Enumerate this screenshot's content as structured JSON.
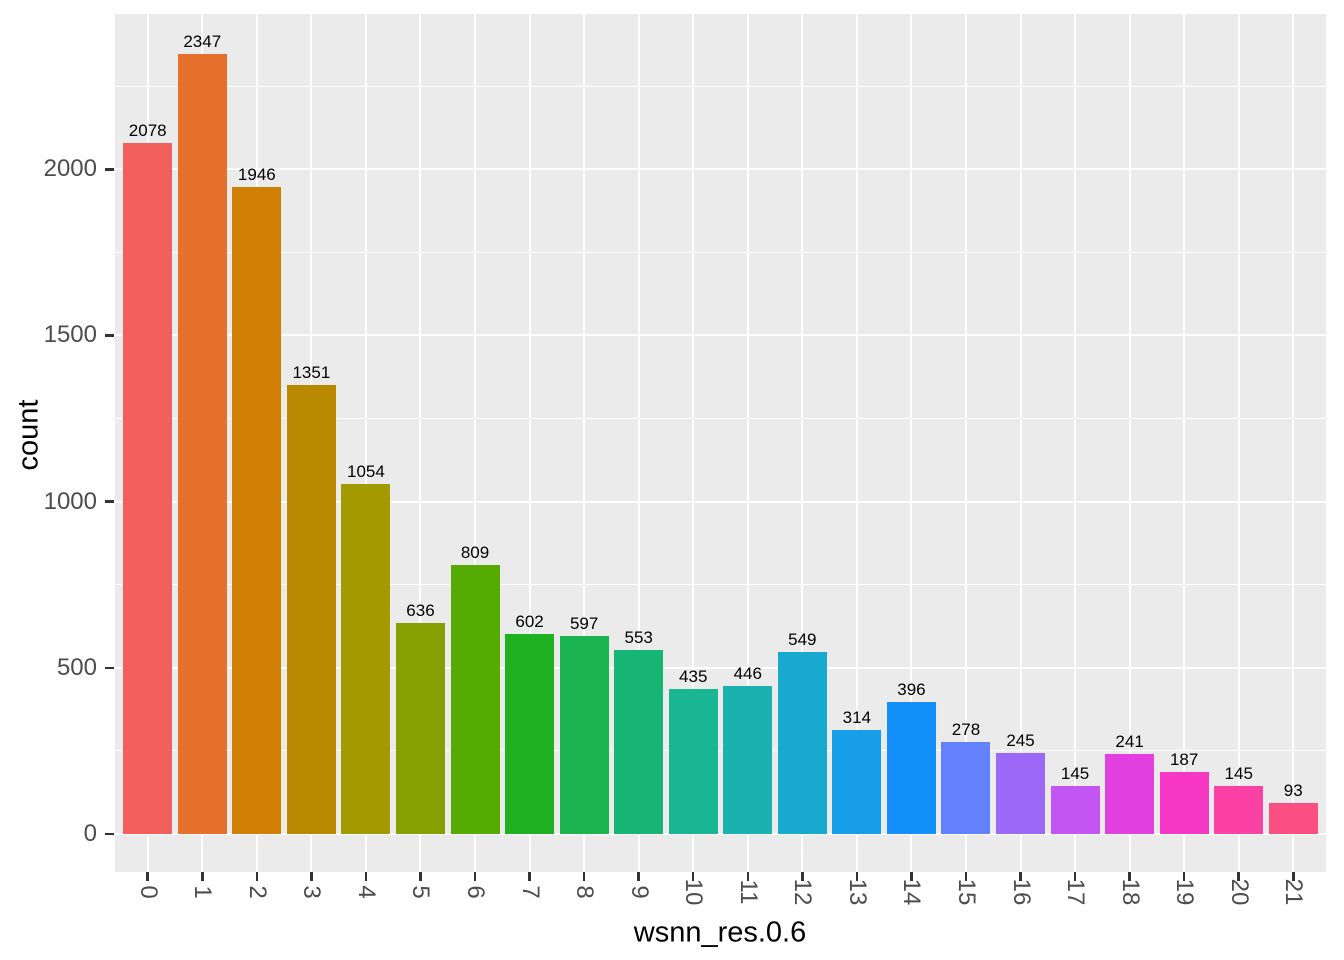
{
  "chart_data": {
    "type": "bar",
    "title": "",
    "xlabel": "wsnn_res.0.6",
    "ylabel": "count",
    "categories": [
      "0",
      "1",
      "2",
      "3",
      "4",
      "5",
      "6",
      "7",
      "8",
      "9",
      "10",
      "11",
      "12",
      "13",
      "14",
      "15",
      "16",
      "17",
      "18",
      "19",
      "20",
      "21"
    ],
    "values": [
      2078,
      2347,
      1946,
      1351,
      1054,
      636,
      809,
      602,
      597,
      553,
      435,
      446,
      549,
      314,
      396,
      278,
      245,
      145,
      241,
      187,
      145,
      93
    ],
    "bar_labels": [
      "2078",
      "2347",
      "1946",
      "1351",
      "1054",
      "636",
      "809",
      "602",
      "597",
      "553",
      "435",
      "446",
      "549",
      "314",
      "396",
      "278",
      "245",
      "145",
      "241",
      "187",
      "145",
      "93"
    ],
    "bar_colors": [
      "#F2605D",
      "#E7702D",
      "#D07E04",
      "#B98A00",
      "#A39A00",
      "#85A000",
      "#56AB03",
      "#1FB11F",
      "#1CB351",
      "#17B573",
      "#1AB694",
      "#19B2AF",
      "#18AACE",
      "#179EE8",
      "#1490FB",
      "#6381FB",
      "#9C68F8",
      "#C355F2",
      "#E23EE0",
      "#F537C4",
      "#FC41A5",
      "#FB4F81"
    ],
    "y_tick_labels": [
      "0",
      "500",
      "1000",
      "1500",
      "2000"
    ],
    "y_ticks": [
      0,
      500,
      1000,
      1500,
      2000
    ],
    "y_minor_gridlines": [
      250,
      750,
      1250,
      1750,
      2250
    ],
    "ylim": [
      0,
      2466
    ],
    "grid": "on",
    "legend_position": "none",
    "panel_background": "#EBEBEB",
    "grid_color": "#FFFFFF",
    "axis_tick_color": "#333333",
    "tick_label_color": "#4D4D4D",
    "bar_label_color": "#000000",
    "axis_title_color": "#000000"
  }
}
